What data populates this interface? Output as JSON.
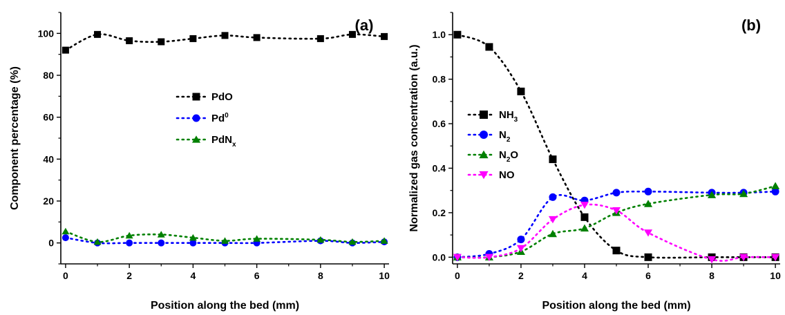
{
  "chart_data": [
    {
      "type": "scatter",
      "panel_label": "(a)",
      "xlabel": "Position along the bed (mm)",
      "ylabel": "Component percentage (%)",
      "xlim": [
        -0.15,
        10.15
      ],
      "ylim": [
        -10,
        110
      ],
      "xticks": [
        0,
        2,
        4,
        6,
        8,
        10
      ],
      "yticks": [
        0,
        20,
        40,
        60,
        80,
        100
      ],
      "grid": false,
      "legend": "center-left",
      "series": [
        {
          "name": "PdO",
          "sub": "",
          "sup": "",
          "marker": "square",
          "color": "#000000",
          "x": [
            0,
            1,
            2,
            3,
            4,
            5,
            6,
            8,
            9,
            10
          ],
          "y": [
            92,
            99.5,
            96.5,
            96,
            97.5,
            99,
            98,
            97.5,
            99.5,
            98.5
          ]
        },
        {
          "name": "Pd",
          "sub": "",
          "sup": "0",
          "marker": "circle",
          "color": "#0000ff",
          "x": [
            0,
            1,
            2,
            3,
            4,
            5,
            6,
            8,
            9,
            10
          ],
          "y": [
            2.5,
            0,
            0,
            0,
            0,
            0,
            0,
            1,
            0,
            0.5
          ]
        },
        {
          "name": "PdN",
          "sub": "x",
          "sup": "",
          "marker": "triangle-up",
          "color": "#008000",
          "x": [
            0,
            1,
            2,
            3,
            4,
            5,
            6,
            8,
            9,
            10
          ],
          "y": [
            5.5,
            0.5,
            3.5,
            4,
            2.5,
            1,
            2,
            1.5,
            0.5,
            1
          ]
        }
      ]
    },
    {
      "type": "scatter",
      "panel_label": "(b)",
      "xlabel": "Position along the bed (mm)",
      "ylabel": "Normalized gas concentration (a.u.)",
      "xlim": [
        -0.15,
        10.15
      ],
      "ylim": [
        -0.03,
        1.1
      ],
      "xticks": [
        0,
        2,
        4,
        6,
        8,
        10
      ],
      "yticks": [
        0.0,
        0.2,
        0.4,
        0.6,
        0.8,
        1.0
      ],
      "grid": false,
      "legend": "center-left",
      "series": [
        {
          "name": "NH",
          "sub": "3",
          "sup": "",
          "marker": "square",
          "color": "#000000",
          "x": [
            0,
            1,
            2,
            3,
            4,
            5,
            6,
            8,
            9,
            10
          ],
          "y": [
            1.0,
            0.945,
            0.745,
            0.44,
            0.18,
            0.03,
            0.0,
            0.0,
            0.0,
            0.0
          ]
        },
        {
          "name": "N",
          "sub": "2",
          "sup": "",
          "marker": "circle",
          "color": "#0000ff",
          "x": [
            0,
            1,
            2,
            3,
            4,
            5,
            6,
            8,
            9,
            10
          ],
          "y": [
            0.0,
            0.015,
            0.08,
            0.27,
            0.255,
            0.29,
            0.295,
            0.29,
            0.29,
            0.295
          ]
        },
        {
          "name": "N",
          "sub": "2",
          "sup": "",
          "suffix": "O",
          "marker": "triangle-up",
          "color": "#008000",
          "x": [
            0,
            1,
            2,
            3,
            4,
            5,
            6,
            8,
            9,
            10
          ],
          "y": [
            0.0,
            0.0,
            0.025,
            0.105,
            0.13,
            0.2,
            0.24,
            0.28,
            0.285,
            0.32
          ]
        },
        {
          "name": "NO",
          "sub": "",
          "sup": "",
          "marker": "triangle-down",
          "color": "#ff00ff",
          "x": [
            0,
            1,
            2,
            3,
            4,
            5,
            6,
            8,
            9,
            10
          ],
          "y": [
            0.0,
            0.0,
            0.04,
            0.17,
            0.235,
            0.21,
            0.11,
            -0.01,
            0.0,
            0.0
          ]
        }
      ]
    }
  ]
}
